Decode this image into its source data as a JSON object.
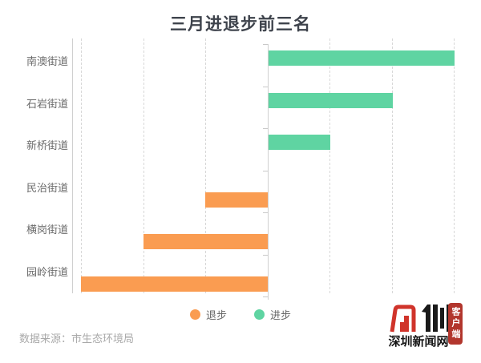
{
  "title": "三月进退步前三名",
  "source": "数据来源：市生态环境局",
  "chart_data": {
    "type": "bar",
    "orientation": "horizontal",
    "title": "三月进退步前三名",
    "categories": [
      "南澳街道",
      "石岩街道",
      "新桥街道",
      "民治街道",
      "横岗街道",
      "园岭街道"
    ],
    "series": [
      {
        "name": "退步",
        "color": "#FA9C51",
        "values": [
          0,
          0,
          0,
          -1,
          -2,
          -3
        ]
      },
      {
        "name": "进步",
        "color": "#5FD4A2",
        "values": [
          3,
          2,
          1,
          0,
          0,
          0
        ]
      }
    ],
    "xlim": [
      -3.2,
      3.2
    ],
    "grid": "dashed vertical lines at integer steps, no value labels",
    "legend_position": "bottom-center",
    "value_axis_labels_visible": false
  },
  "brand": {
    "name": "深圳新闻网",
    "badge": "客户端",
    "brand_red": "#D0342B",
    "badge_red": "#B2362D"
  }
}
